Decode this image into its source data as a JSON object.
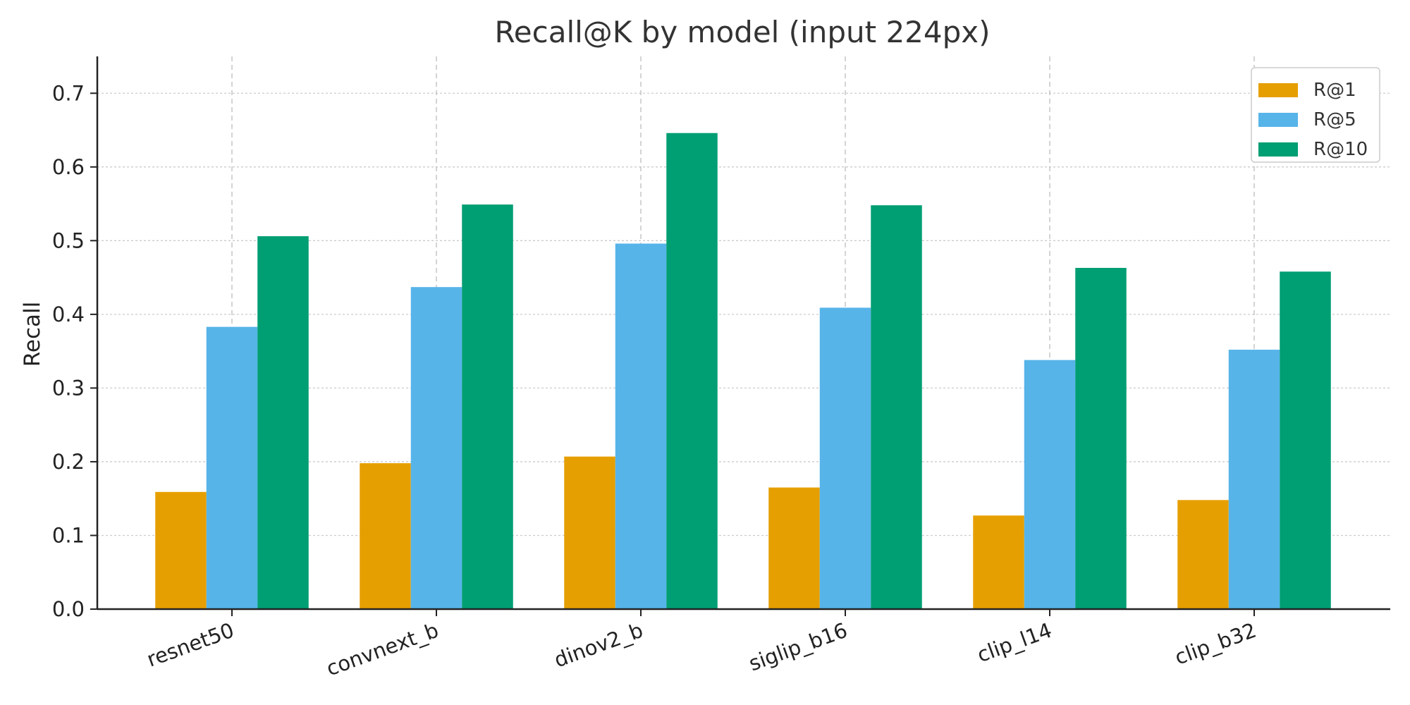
{
  "chart_data": {
    "type": "bar",
    "title": "Recall@K by model (input 224px)",
    "xlabel": "",
    "ylabel": "Recall",
    "categories": [
      "resnet50",
      "convnext_b",
      "dinov2_b",
      "siglip_b16",
      "clip_l14",
      "clip_b32"
    ],
    "series": [
      {
        "name": "R@1",
        "color": "#E69F00",
        "values": [
          0.159,
          0.198,
          0.207,
          0.165,
          0.127,
          0.148
        ]
      },
      {
        "name": "R@5",
        "color": "#56B4E9",
        "values": [
          0.383,
          0.437,
          0.496,
          0.409,
          0.338,
          0.352
        ]
      },
      {
        "name": "R@10",
        "color": "#009E73",
        "values": [
          0.506,
          0.549,
          0.646,
          0.548,
          0.463,
          0.458
        ]
      }
    ],
    "ylim": [
      0,
      0.75
    ],
    "yticks": [
      0.0,
      0.1,
      0.2,
      0.3,
      0.4,
      0.5,
      0.6,
      0.7
    ],
    "ytick_labels": [
      "0.0",
      "0.1",
      "0.2",
      "0.3",
      "0.4",
      "0.5",
      "0.6",
      "0.7"
    ],
    "grid": true,
    "legend_position": "top-right"
  }
}
